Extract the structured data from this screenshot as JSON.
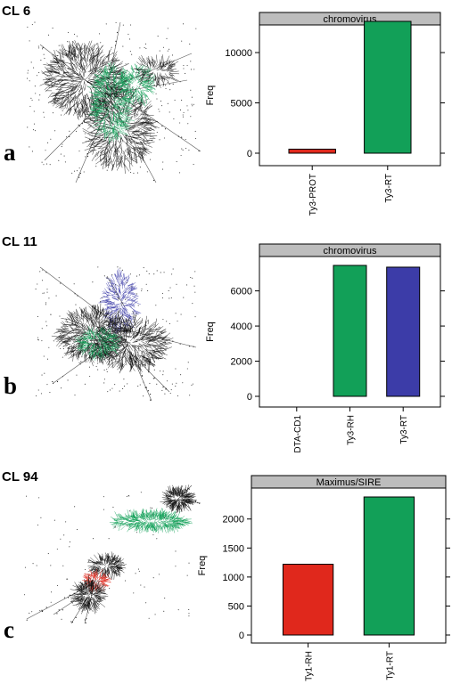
{
  "panels": [
    {
      "cluster_label": "CL 6",
      "panel_letter": "a"
    },
    {
      "cluster_label": "CL 11",
      "panel_letter": "b"
    },
    {
      "cluster_label": "CL 94",
      "panel_letter": "c"
    }
  ],
  "colors": {
    "red": "#e0281c",
    "green": "#12a058",
    "blue": "#3c3ca8",
    "strip": "#bdbdbd",
    "network": "#111111"
  },
  "chart_data": [
    {
      "type": "bar",
      "title": "chromovirus",
      "categories": [
        "Ty3-PROT",
        "Ty3-RT"
      ],
      "values": [
        400,
        13100
      ],
      "bar_colors": [
        "#e0281c",
        "#12a058"
      ],
      "ylabel": "Freq",
      "yticks": [
        0,
        5000,
        10000
      ],
      "ylim": [
        0,
        13100
      ],
      "grid": false
    },
    {
      "type": "bar",
      "title": "chromovirus",
      "categories": [
        "DTA-CD1",
        "Ty3-RH",
        "Ty3-RT"
      ],
      "values": [
        0,
        7450,
        7350
      ],
      "bar_colors": [
        "#12a058",
        "#12a058",
        "#3c3ca8"
      ],
      "ylabel": "Freq",
      "yticks": [
        0,
        2000,
        4000,
        6000
      ],
      "ylim": [
        0,
        7450
      ],
      "grid": false
    },
    {
      "type": "bar",
      "title": "Maximus/SIRE",
      "categories": [
        "Ty1-RH",
        "Ty1-RT"
      ],
      "values": [
        1220,
        2380
      ],
      "bar_colors": [
        "#e0281c",
        "#12a058"
      ],
      "ylabel": "Freq",
      "yticks": [
        0,
        500,
        1000,
        1500,
        2000
      ],
      "ylim": [
        0,
        2380
      ],
      "grid": false
    }
  ]
}
